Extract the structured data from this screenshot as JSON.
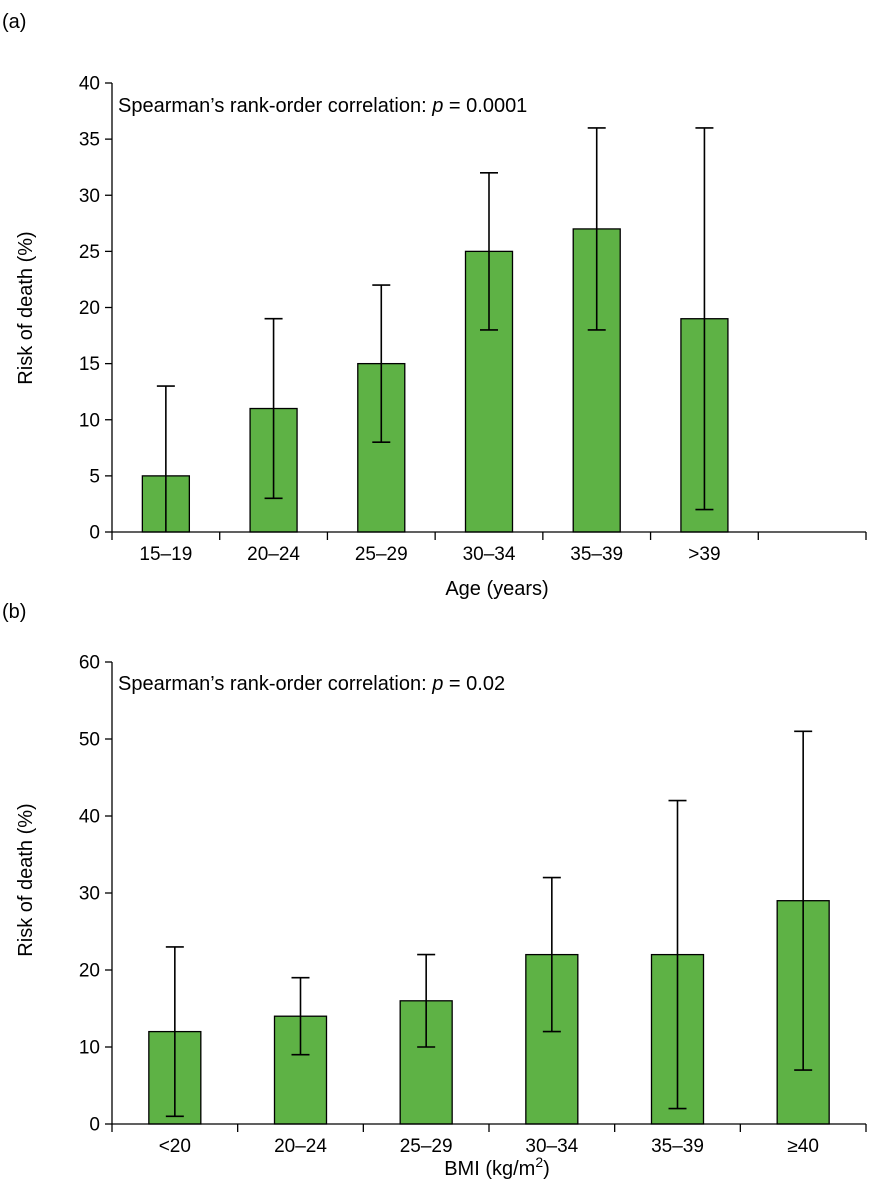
{
  "chart_data": [
    {
      "type": "bar",
      "panel_label": "(a)",
      "annotation_prefix": "Spearman’s rank-order correlation: ",
      "annotation_p": "p",
      "annotation_value": " = 0.0001",
      "xlabel": "Age (years)",
      "ylabel": "Risk of death (%)",
      "ylim": [
        0,
        40
      ],
      "yticks": [
        0,
        5,
        10,
        15,
        20,
        25,
        30,
        35,
        40
      ],
      "categories": [
        "15–19",
        "20–24",
        "25–29",
        "30–34",
        "35–39",
        ">39"
      ],
      "extra_empty_category": true,
      "values": [
        5,
        11,
        15,
        25,
        27,
        19
      ],
      "error_low": [
        0,
        3,
        8,
        18,
        18,
        2
      ],
      "error_high": [
        13,
        19,
        22,
        32,
        36,
        36
      ],
      "bar_color": "#5eb245",
      "grid": false
    },
    {
      "type": "bar",
      "panel_label": "(b)",
      "annotation_prefix": "Spearman’s rank-order correlation: ",
      "annotation_p": "p",
      "annotation_value": " = 0.02",
      "xlabel_main": "BMI (kg/m",
      "xlabel_sup": "2",
      "xlabel_end": ")",
      "ylabel": "Risk of death (%)",
      "ylim": [
        0,
        60
      ],
      "yticks": [
        0,
        10,
        20,
        30,
        40,
        50,
        60
      ],
      "categories": [
        "<20",
        "20–24",
        "25–29",
        "30–34",
        "35–39",
        "≥40"
      ],
      "extra_empty_category": false,
      "values": [
        12,
        14,
        16,
        22,
        22,
        29
      ],
      "error_low": [
        1,
        9,
        10,
        12,
        2,
        7
      ],
      "error_high": [
        23,
        19,
        22,
        32,
        42,
        51
      ],
      "bar_color": "#5eb245",
      "grid": false
    }
  ]
}
